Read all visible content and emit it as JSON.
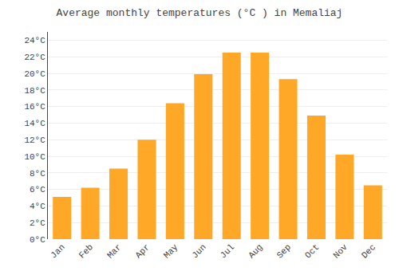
{
  "chart_data": {
    "type": "bar",
    "title": "Average monthly temperatures (°C ) in Memaliaj",
    "categories": [
      "Jan",
      "Feb",
      "Mar",
      "Apr",
      "May",
      "Jun",
      "Jul",
      "Aug",
      "Sep",
      "Oct",
      "Nov",
      "Dec"
    ],
    "values": [
      5.1,
      6.2,
      8.5,
      12.0,
      16.4,
      19.9,
      22.5,
      22.5,
      19.3,
      14.9,
      10.2,
      6.5
    ],
    "color": "#FFA726",
    "ylim": [
      0,
      25
    ],
    "yticks": [
      {
        "value": 0,
        "label": "0°C"
      },
      {
        "value": 2,
        "label": "2°C"
      },
      {
        "value": 4,
        "label": "4°C"
      },
      {
        "value": 6,
        "label": "6°C"
      },
      {
        "value": 8,
        "label": "8°C"
      },
      {
        "value": 10,
        "label": "10°C"
      },
      {
        "value": 12,
        "label": "12°C"
      },
      {
        "value": 14,
        "label": "14°C"
      },
      {
        "value": 16,
        "label": "16°C"
      },
      {
        "value": 18,
        "label": "18°C"
      },
      {
        "value": 20,
        "label": "20°C"
      },
      {
        "value": 22,
        "label": "22°C"
      },
      {
        "value": 24,
        "label": "24°C"
      }
    ],
    "grid": true
  }
}
